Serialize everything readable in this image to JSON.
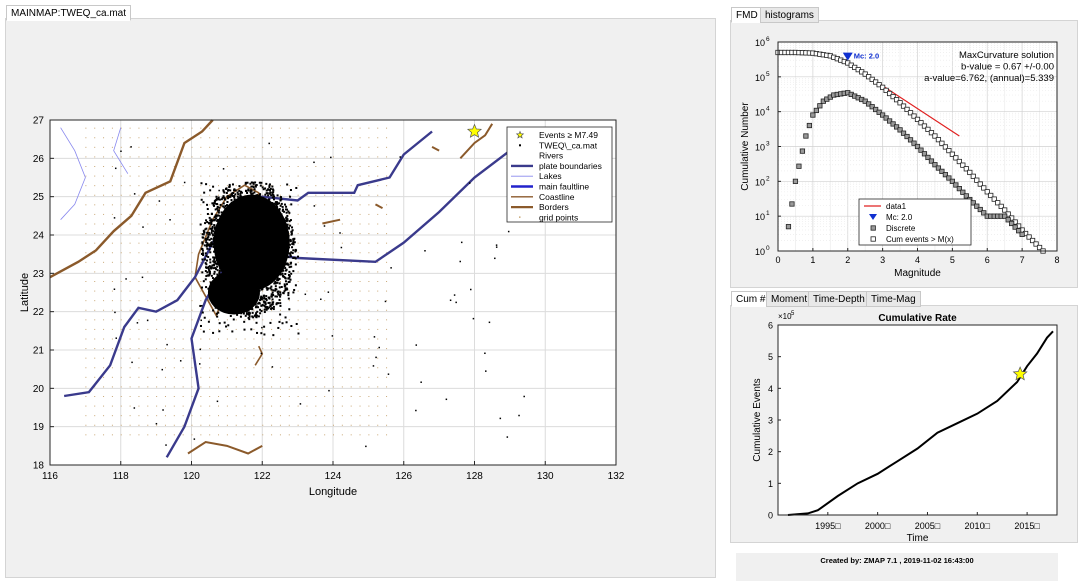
{
  "main_tab": {
    "label": "MAINMAP:TWEQ_ca.mat"
  },
  "fmd_tabs": [
    "FMD",
    "histograms"
  ],
  "cum_tabs": [
    "Cum #",
    "Moment",
    "Time-Depth",
    "Time-Mag"
  ],
  "status": "Created by: ZMAP 7.1 , 2019-11-02 16:43:00",
  "map": {
    "xlabel": "Longitude",
    "ylabel": "Latitude",
    "xticks": [
      "116",
      "118",
      "120",
      "122",
      "124",
      "126",
      "128",
      "130",
      "132"
    ],
    "yticks": [
      "18",
      "19",
      "20",
      "21",
      "22",
      "23",
      "24",
      "25",
      "26",
      "27"
    ],
    "xlim": [
      116,
      132
    ],
    "ylim": [
      18,
      27
    ],
    "legend": [
      {
        "label": "Events ≥ M7.49",
        "icon": "star-icon"
      },
      {
        "label": "TWEQ\\_ca.mat",
        "icon": "dot-icon"
      },
      {
        "label": "Rivers",
        "icon": "blank"
      },
      {
        "label": "plate boundaries",
        "icon": "line-plate"
      },
      {
        "label": "Lakes",
        "icon": "line-lake"
      },
      {
        "label": "main faultline",
        "icon": "line-fault"
      },
      {
        "label": "Coastline",
        "icon": "line-coast"
      },
      {
        "label": "Borders",
        "icon": "line-border"
      },
      {
        "label": "grid points",
        "icon": "dot-grid"
      }
    ],
    "colors": {
      "plate": "#3a3a8c",
      "fault": "#2222cc",
      "coast": "#8b5a2b",
      "lake": "#8888ee",
      "star": "#ffff00",
      "grid": "#c9a877"
    }
  },
  "fmd": {
    "xlabel": "Magnitude",
    "ylabel": "Cumulative Number",
    "xticks": [
      "0",
      "1",
      "2",
      "3",
      "4",
      "5",
      "6",
      "7",
      "8"
    ],
    "yticks": [
      "10",
      "10",
      "10",
      "10",
      "10",
      "10",
      "10"
    ],
    "yexp": [
      "0",
      "1",
      "2",
      "3",
      "4",
      "5",
      "6"
    ],
    "mc_label": "Mc: 2.0",
    "annotation": [
      "MaxCurvature solution",
      "b-value = 0.67 +/-0.00",
      "a-value=6.762, (annual)=5.339"
    ],
    "legend": [
      "data1",
      "Mc: 2.0",
      "Discrete",
      "Cum events > M(x)"
    ]
  },
  "cum": {
    "title": "Cumulative Rate",
    "xlabel": "Time",
    "ylabel": "Cumulative Events",
    "exp_label": "×10",
    "exp_value": "5",
    "xticks": [
      "1995□",
      "2000□",
      "2005□",
      "2010□",
      "2015□"
    ],
    "yticks": [
      "0",
      "1",
      "2",
      "3",
      "4",
      "5",
      "6"
    ]
  },
  "chart_data": [
    {
      "type": "scatter",
      "title": "",
      "xlabel": "Magnitude",
      "ylabel": "Cumulative Number",
      "log_y": true,
      "xlim": [
        0,
        8
      ],
      "ylim": [
        1,
        1000000
      ],
      "series": [
        {
          "name": "Cum events > M(x)",
          "x": [
            0.0,
            0.5,
            1.0,
            1.5,
            2.0,
            2.5,
            3.0,
            3.5,
            4.0,
            4.5,
            5.0,
            5.5,
            6.0,
            6.5,
            7.0,
            7.3,
            7.6
          ],
          "y": [
            500000,
            500000,
            480000,
            400000,
            250000,
            120000,
            50000,
            18000,
            6000,
            2000,
            600,
            180,
            50,
            15,
            4,
            2,
            1
          ]
        },
        {
          "name": "Discrete",
          "x": [
            0.3,
            0.5,
            0.8,
            1.0,
            1.3,
            1.6,
            2.0,
            2.5,
            3.0,
            3.5,
            4.0,
            4.5,
            5.0,
            5.5,
            6.0,
            6.5,
            7.0
          ],
          "y": [
            5,
            100,
            2000,
            8000,
            20000,
            30000,
            35000,
            20000,
            8000,
            3000,
            1000,
            300,
            100,
            30,
            10,
            10,
            3
          ]
        },
        {
          "name": "data1",
          "x": [
            2.0,
            5.2
          ],
          "y": [
            250000,
            2000
          ]
        }
      ],
      "mc": {
        "x": 2.0,
        "y": 380000
      }
    },
    {
      "type": "line",
      "title": "Cumulative Rate",
      "xlabel": "Time",
      "ylabel": "Cumulative Events",
      "xlim": [
        1990,
        2018
      ],
      "ylim": [
        0,
        600000
      ],
      "x": [
        1991,
        1993,
        1994,
        1996,
        1998,
        2000,
        2002,
        2004,
        2006,
        2008,
        2010,
        2012,
        2014,
        2015,
        2016,
        2017,
        2017.6
      ],
      "y": [
        0,
        5000,
        15000,
        60000,
        100000,
        130000,
        170000,
        210000,
        260000,
        290000,
        320000,
        360000,
        420000,
        470000,
        510000,
        560000,
        580000
      ],
      "star": {
        "x": 2014.3,
        "y": 445000
      }
    }
  ]
}
